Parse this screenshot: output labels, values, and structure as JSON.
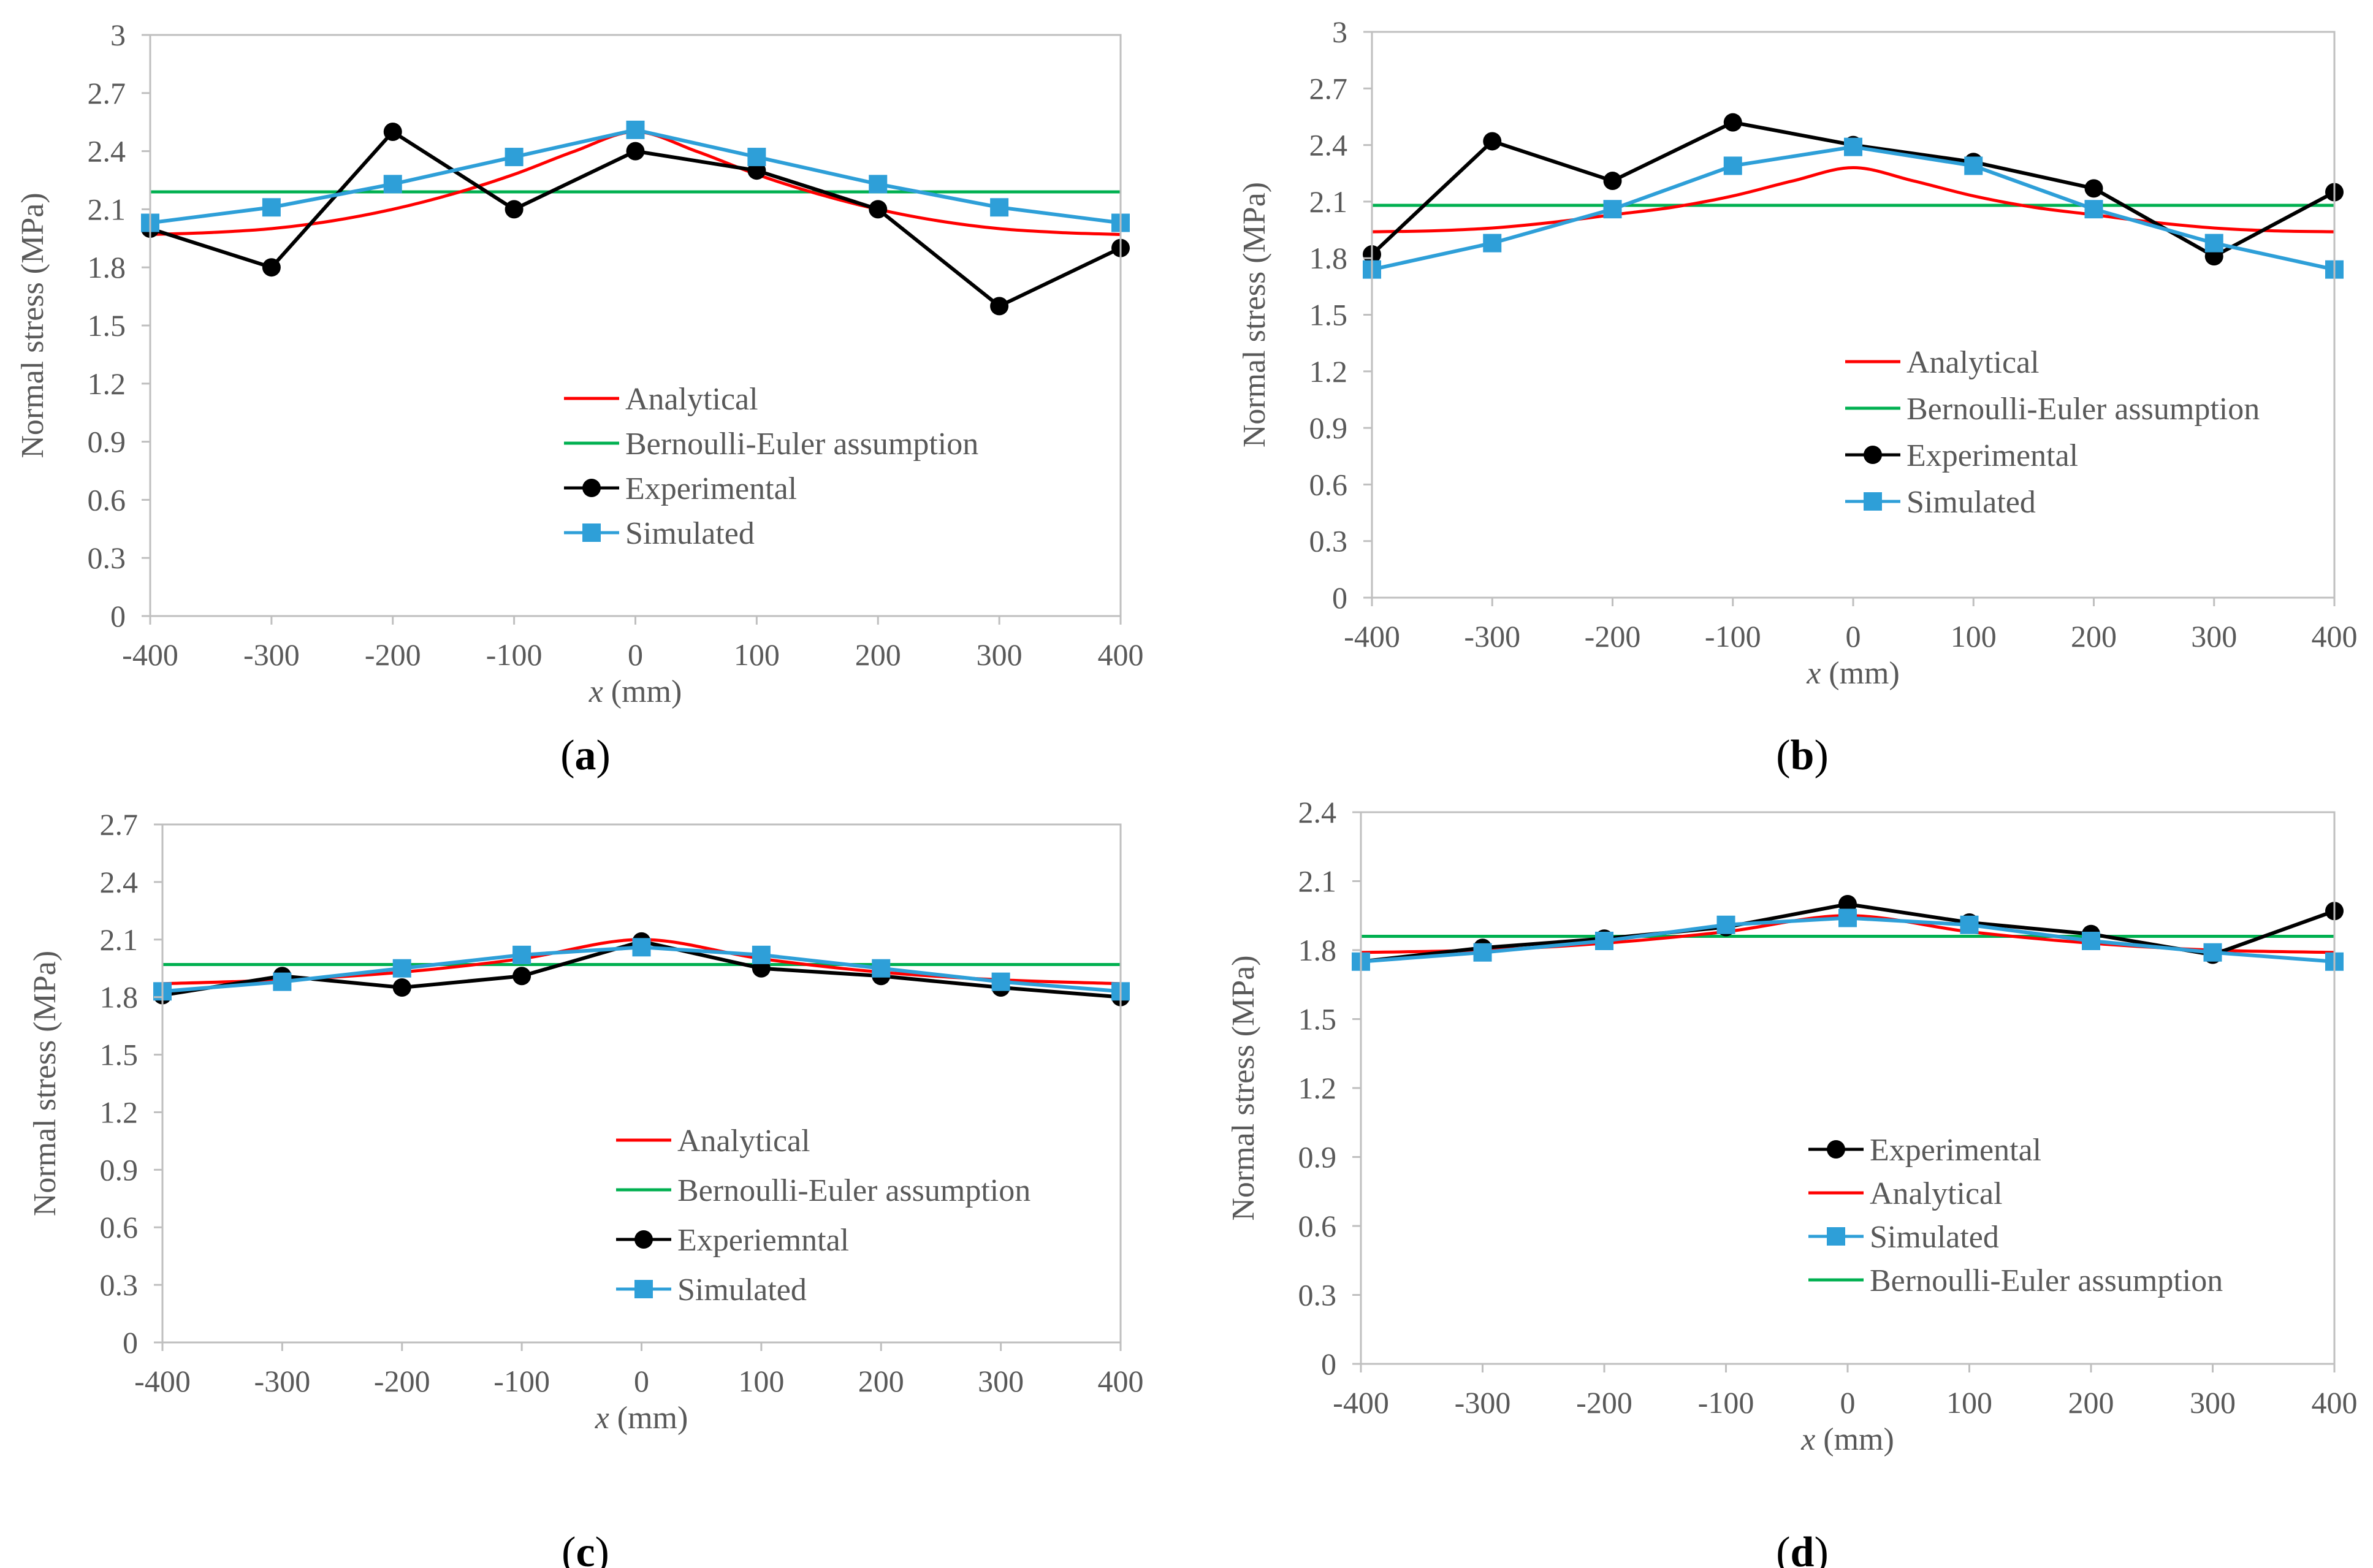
{
  "colors": {
    "analytical": "#ff0000",
    "bernoulli": "#00b050",
    "experimental": "#000000",
    "simulated": "#2e9fd8",
    "axis": "#bfbfbf",
    "text": "#595959"
  },
  "chart_data": [
    {
      "id": "a",
      "type": "line",
      "caption": "(a)",
      "caption_letter": "a",
      "xlabel": "(mm)",
      "xlabel_var": "x",
      "ylabel": "Normal stress (MPa)",
      "xlim": [
        -400,
        400
      ],
      "ylim": [
        0,
        3
      ],
      "xticks": [
        -400,
        -300,
        -200,
        -100,
        0,
        100,
        200,
        300,
        400
      ],
      "yticks": [
        0,
        0.3,
        0.6,
        0.9,
        1.2,
        1.5,
        1.8,
        2.1,
        2.4,
        2.7,
        3
      ],
      "x": [
        -400,
        -300,
        -200,
        -100,
        0,
        100,
        200,
        300,
        400
      ],
      "series": [
        {
          "key": "analytical",
          "name": "Analytical",
          "kind": "smooth",
          "x": [
            -400,
            -350,
            -300,
            -250,
            -200,
            -150,
            -100,
            -50,
            0,
            50,
            100,
            150,
            200,
            250,
            300,
            350,
            400
          ],
          "values": [
            1.97,
            1.98,
            2.0,
            2.04,
            2.1,
            2.18,
            2.28,
            2.4,
            2.5,
            2.4,
            2.28,
            2.18,
            2.1,
            2.04,
            2.0,
            1.98,
            1.97
          ]
        },
        {
          "key": "bernoulli",
          "name": "Bernoulli-Euler assumption",
          "kind": "flat",
          "x": [
            -400,
            400
          ],
          "values": [
            2.19,
            2.19
          ]
        },
        {
          "key": "experimental",
          "name": "Experimental",
          "kind": "marker-circle",
          "values": [
            2.0,
            1.8,
            2.5,
            2.1,
            2.4,
            2.3,
            2.1,
            1.6,
            1.9
          ]
        },
        {
          "key": "simulated",
          "name": "Simulated",
          "kind": "marker-square",
          "values": [
            2.03,
            2.11,
            2.23,
            2.37,
            2.51,
            2.37,
            2.23,
            2.11,
            2.03
          ]
        }
      ],
      "legend_order": [
        "analytical",
        "bernoulli",
        "experimental",
        "simulated"
      ],
      "legend": "lower-center"
    },
    {
      "id": "b",
      "type": "line",
      "caption": "(b)",
      "caption_letter": "b",
      "xlabel": "(mm)",
      "xlabel_var": "x",
      "ylabel": "Normal stress (MPa)",
      "xlim": [
        -400,
        400
      ],
      "ylim": [
        0,
        3
      ],
      "xticks": [
        -400,
        -300,
        -200,
        -100,
        0,
        100,
        200,
        300,
        400
      ],
      "yticks": [
        0,
        0.3,
        0.6,
        0.9,
        1.2,
        1.5,
        1.8,
        2.1,
        2.4,
        2.7,
        3
      ],
      "x": [
        -400,
        -300,
        -200,
        -100,
        0,
        100,
        200,
        300,
        400
      ],
      "series": [
        {
          "key": "analytical",
          "name": "Analytical",
          "kind": "smooth",
          "x": [
            -400,
            -350,
            -300,
            -250,
            -200,
            -150,
            -100,
            -50,
            0,
            50,
            100,
            150,
            200,
            250,
            300,
            350,
            400
          ],
          "values": [
            1.94,
            1.945,
            1.96,
            1.99,
            2.03,
            2.07,
            2.13,
            2.21,
            2.28,
            2.21,
            2.13,
            2.07,
            2.03,
            1.99,
            1.96,
            1.945,
            1.94
          ]
        },
        {
          "key": "bernoulli",
          "name": "Bernoulli-Euler assumption",
          "kind": "flat",
          "x": [
            -400,
            400
          ],
          "values": [
            2.08,
            2.08
          ]
        },
        {
          "key": "experimental",
          "name": "Experimental",
          "kind": "marker-circle",
          "values": [
            1.82,
            2.42,
            2.21,
            2.52,
            2.4,
            2.31,
            2.17,
            1.81,
            2.15
          ]
        },
        {
          "key": "simulated",
          "name": "Simulated",
          "kind": "marker-square",
          "values": [
            1.74,
            1.88,
            2.06,
            2.29,
            2.39,
            2.29,
            2.06,
            1.88,
            1.74
          ]
        }
      ],
      "legend_order": [
        "analytical",
        "bernoulli",
        "experimental",
        "simulated"
      ],
      "legend": "center-right"
    },
    {
      "id": "c",
      "type": "line",
      "caption": "(c)",
      "caption_letter": "c",
      "xlabel": "(mm)",
      "xlabel_var": "x",
      "ylabel": "Normal stress (MPa)",
      "xlim": [
        -400,
        400
      ],
      "ylim": [
        0,
        2.7
      ],
      "xticks": [
        -400,
        -300,
        -200,
        -100,
        0,
        100,
        200,
        300,
        400
      ],
      "yticks": [
        0,
        0.3,
        0.6,
        0.9,
        1.2,
        1.5,
        1.8,
        2.1,
        2.4,
        2.7
      ],
      "x": [
        -400,
        -300,
        -200,
        -100,
        0,
        100,
        200,
        300,
        400
      ],
      "series": [
        {
          "key": "analytical",
          "name": "Analytical",
          "kind": "smooth",
          "x": [
            -400,
            -300,
            -200,
            -100,
            0,
            100,
            200,
            300,
            400
          ],
          "values": [
            1.87,
            1.89,
            1.93,
            2.0,
            2.1,
            2.0,
            1.93,
            1.89,
            1.87
          ]
        },
        {
          "key": "bernoulli",
          "name": "Bernoulli-Euler assumption",
          "kind": "flat",
          "x": [
            -400,
            400
          ],
          "values": [
            1.97,
            1.97
          ]
        },
        {
          "key": "experimental",
          "name": "Experiemntal",
          "kind": "marker-circle",
          "values": [
            1.81,
            1.91,
            1.85,
            1.91,
            2.09,
            1.95,
            1.91,
            1.85,
            1.8
          ]
        },
        {
          "key": "simulated",
          "name": "Simulated",
          "kind": "marker-square",
          "values": [
            1.83,
            1.88,
            1.95,
            2.02,
            2.06,
            2.02,
            1.95,
            1.88,
            1.83
          ]
        }
      ],
      "legend_order": [
        "analytical",
        "bernoulli",
        "experimental",
        "simulated"
      ],
      "legend": "lower-center"
    },
    {
      "id": "d",
      "type": "line",
      "caption": "(d)",
      "caption_letter": "d",
      "xlabel": "(mm)",
      "xlabel_var": "x",
      "ylabel": "Normal stress (MPa)",
      "xlim": [
        -400,
        400
      ],
      "ylim": [
        0,
        2.4
      ],
      "xticks": [
        -400,
        -300,
        -200,
        -100,
        0,
        100,
        200,
        300,
        400
      ],
      "yticks": [
        0,
        0.3,
        0.6,
        0.9,
        1.2,
        1.5,
        1.8,
        2.1,
        2.4
      ],
      "x": [
        -400,
        -300,
        -200,
        -100,
        0,
        100,
        200,
        300,
        400
      ],
      "series": [
        {
          "key": "experimental",
          "name": "Experimental",
          "kind": "marker-circle",
          "values": [
            1.75,
            1.81,
            1.85,
            1.9,
            2.0,
            1.92,
            1.87,
            1.78,
            1.97
          ]
        },
        {
          "key": "analytical",
          "name": "Analytical",
          "kind": "smooth",
          "x": [
            -400,
            -300,
            -200,
            -100,
            0,
            100,
            200,
            300,
            400
          ],
          "values": [
            1.79,
            1.8,
            1.83,
            1.88,
            1.95,
            1.88,
            1.83,
            1.8,
            1.79
          ]
        },
        {
          "key": "simulated",
          "name": "Simulated",
          "kind": "marker-square",
          "values": [
            1.75,
            1.79,
            1.84,
            1.91,
            1.94,
            1.91,
            1.84,
            1.79,
            1.75
          ]
        },
        {
          "key": "bernoulli",
          "name": "Bernoulli-Euler assumption",
          "kind": "flat",
          "x": [
            -400,
            400
          ],
          "values": [
            1.86,
            1.86
          ]
        }
      ],
      "legend_order": [
        "experimental",
        "analytical",
        "simulated",
        "bernoulli"
      ],
      "legend": "lower-center"
    }
  ]
}
